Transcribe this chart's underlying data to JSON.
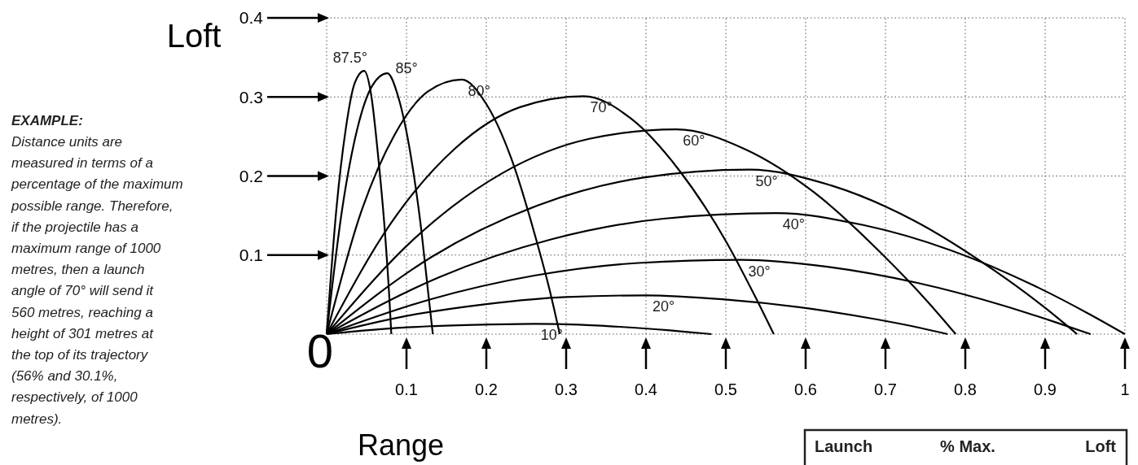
{
  "chart_data": {
    "type": "line",
    "xlabel": "Range",
    "ylabel": "Loft",
    "xlim": [
      0,
      1
    ],
    "ylim": [
      0,
      0.4
    ],
    "xticks": [
      0.1,
      0.2,
      0.3,
      0.4,
      0.5,
      0.6,
      0.7,
      0.8,
      0.9,
      1
    ],
    "yticks": [
      0.1,
      0.2,
      0.3,
      0.4
    ],
    "grid": true,
    "line_style": "solid",
    "annotations": [
      {
        "text": "0",
        "x": 0,
        "y": 0
      },
      "EXAMPLE:",
      "Distance units are measured in terms of a percentage of the maximum possible range. Therefore, if the projectile has a maximum range of 1000 metres, then a launch angle of 70° will send it 560 metres, reaching a height of 301 metres at the top of its trajectory (56% and 30.1%, respectively, of 1000 metres).",
      "Launch",
      "% Max.",
      "Loft"
    ],
    "series": [
      {
        "name": "87.5°",
        "color": "#000000",
        "x": [
          0,
          0.012,
          0.024,
          0.035,
          0.047,
          0.056,
          0.064,
          0.073,
          0.078,
          0.081
        ],
        "values": [
          0,
          0.156,
          0.26,
          0.317,
          0.333,
          0.301,
          0.23,
          0.129,
          0.055,
          0
        ]
      },
      {
        "name": "85°",
        "color": "#000000",
        "x": [
          0,
          0.019,
          0.038,
          0.057,
          0.076,
          0.09,
          0.105,
          0.119,
          0.127,
          0.133
        ],
        "values": [
          0,
          0.155,
          0.258,
          0.314,
          0.33,
          0.299,
          0.228,
          0.128,
          0.054,
          0
        ]
      },
      {
        "name": "80°",
        "color": "#000000",
        "x": [
          0,
          0.042,
          0.085,
          0.127,
          0.169,
          0.2,
          0.231,
          0.261,
          0.28,
          0.292
        ],
        "values": [
          0,
          0.151,
          0.252,
          0.307,
          0.322,
          0.291,
          0.223,
          0.125,
          0.053,
          0
        ]
      },
      {
        "name": "70°",
        "color": "#000000",
        "x": [
          0,
          0.081,
          0.161,
          0.242,
          0.322,
          0.382,
          0.441,
          0.501,
          0.536,
          0.56
        ],
        "values": [
          0,
          0.141,
          0.235,
          0.287,
          0.301,
          0.272,
          0.208,
          0.116,
          0.049,
          0
        ]
      },
      {
        "name": "60°",
        "color": "#000000",
        "x": [
          0,
          0.11,
          0.219,
          0.329,
          0.438,
          0.524,
          0.611,
          0.697,
          0.752,
          0.788
        ],
        "values": [
          0,
          0.121,
          0.203,
          0.247,
          0.259,
          0.234,
          0.179,
          0.1,
          0.042,
          0
        ]
      },
      {
        "name": "50°",
        "color": "#000000",
        "x": [
          0,
          0.132,
          0.265,
          0.397,
          0.529,
          0.632,
          0.735,
          0.837,
          0.899,
          0.94
        ],
        "values": [
          0,
          0.098,
          0.163,
          0.198,
          0.208,
          0.188,
          0.144,
          0.08,
          0.034,
          0
        ]
      },
      {
        "name": "40°",
        "color": "#000000",
        "x": [
          0,
          0.141,
          0.282,
          0.422,
          0.563,
          0.672,
          0.782,
          0.891,
          0.956,
          1
        ],
        "values": [
          0,
          0.072,
          0.12,
          0.146,
          0.153,
          0.138,
          0.106,
          0.059,
          0.025,
          0
        ]
      },
      {
        "name": "30°",
        "color": "#000000",
        "x": [
          0,
          0.13,
          0.26,
          0.39,
          0.52,
          0.629,
          0.739,
          0.848,
          0.913,
          0.957
        ],
        "values": [
          0,
          0.044,
          0.074,
          0.09,
          0.094,
          0.085,
          0.065,
          0.036,
          0.015,
          0
        ]
      },
      {
        "name": "20°",
        "color": "#000000",
        "x": [
          0,
          0.1,
          0.2,
          0.3,
          0.4,
          0.496,
          0.592,
          0.687,
          0.743,
          0.778
        ],
        "values": [
          0,
          0.023,
          0.038,
          0.047,
          0.049,
          0.044,
          0.034,
          0.019,
          0.008,
          0
        ]
      },
      {
        "name": "10°",
        "color": "#000000",
        "x": [
          0,
          0.065,
          0.13,
          0.195,
          0.26,
          0.316,
          0.371,
          0.427,
          0.46,
          0.482
        ],
        "values": [
          0,
          0.006,
          0.01,
          0.012,
          0.013,
          0.012,
          0.009,
          0.005,
          0.002,
          0
        ]
      }
    ]
  }
}
